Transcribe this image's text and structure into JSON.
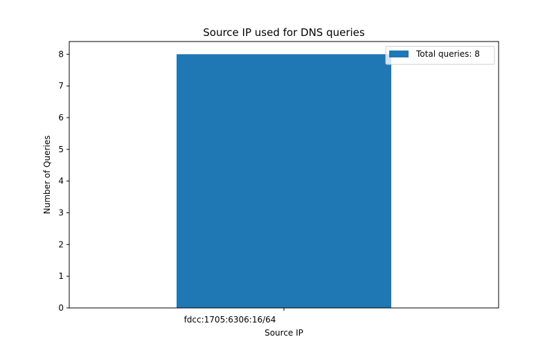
{
  "chart_data": {
    "type": "bar",
    "title": "Source IP used for DNS queries",
    "xlabel": "Source IP",
    "ylabel": "Number of Queries",
    "categories": [
      "fdcc:1705:6306:16/64"
    ],
    "values": [
      8
    ],
    "ylim": [
      0,
      8.4
    ],
    "yticks": [
      0,
      1,
      2,
      3,
      4,
      5,
      6,
      7,
      8
    ],
    "legend": {
      "label": "Total queries: 8",
      "placement": "top-right"
    },
    "grid": false,
    "bar_color": "#1f77b4"
  }
}
